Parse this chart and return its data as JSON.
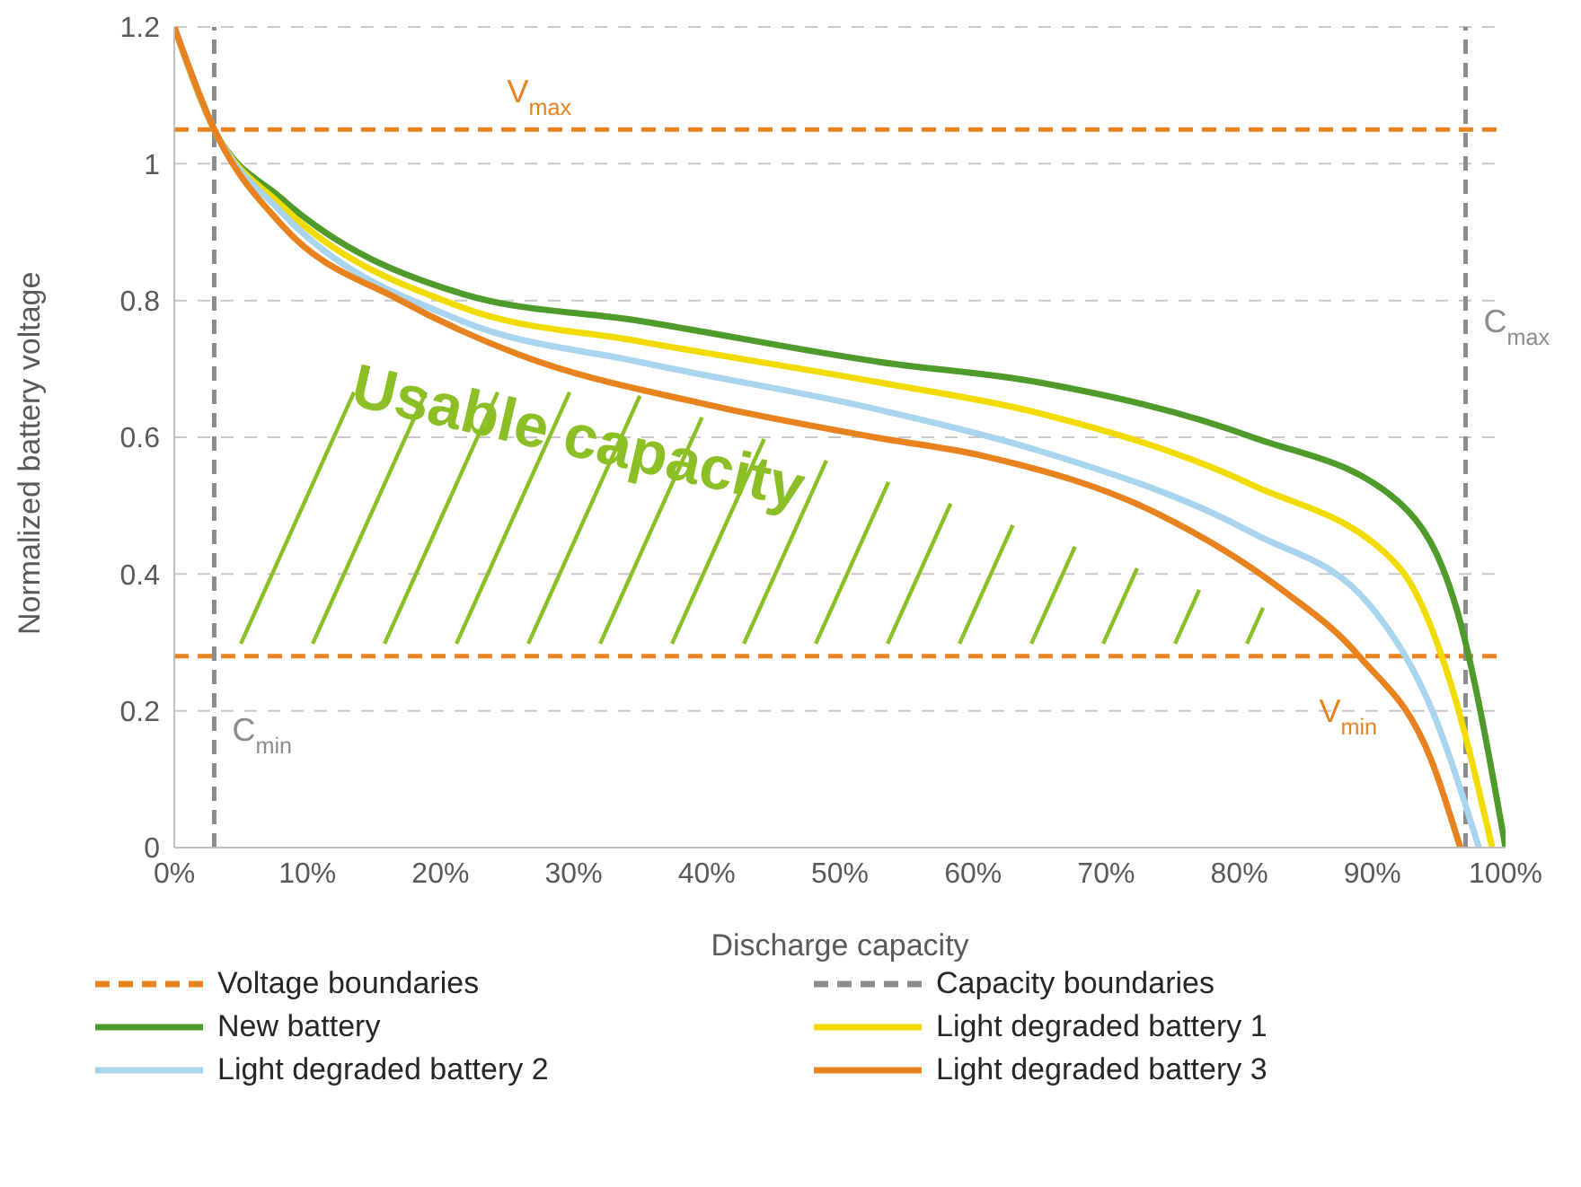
{
  "chart_data": {
    "type": "line",
    "xlabel": "Discharge capacity",
    "ylabel": "Normalized battery voltage",
    "xlim": [
      0,
      100
    ],
    "ylim": [
      0,
      1.2
    ],
    "xticks": [
      {
        "value": 0,
        "label": "0%"
      },
      {
        "value": 10,
        "label": "10%"
      },
      {
        "value": 20,
        "label": "20%"
      },
      {
        "value": 30,
        "label": "30%"
      },
      {
        "value": 40,
        "label": "40%"
      },
      {
        "value": 50,
        "label": "50%"
      },
      {
        "value": 60,
        "label": "60%"
      },
      {
        "value": 70,
        "label": "70%"
      },
      {
        "value": 80,
        "label": "80%"
      },
      {
        "value": 90,
        "label": "90%"
      },
      {
        "value": 100,
        "label": "100%"
      }
    ],
    "yticks": [
      0,
      0.2,
      0.4,
      0.6,
      0.8,
      1,
      1.2
    ],
    "grid": "y",
    "legend": "bottom",
    "marker": "none",
    "line_style": "solid",
    "series": [
      {
        "name": "New battery",
        "color": "#4e9a2a",
        "x": [
          0,
          3,
          8,
          21.6,
          35,
          53,
          65,
          81,
          92,
          96.6,
          100
        ],
        "values": [
          1.2,
          1.05,
          0.95,
          0.81,
          0.77,
          0.71,
          0.68,
          0.6,
          0.505,
          0.33,
          0
        ]
      },
      {
        "name": "Light degraded battery 1",
        "color": "#f2dc00",
        "x": [
          0,
          3,
          8,
          21.6,
          35,
          53,
          65,
          81,
          92,
          95.8,
          99
        ],
        "values": [
          1.2,
          1.05,
          0.94,
          0.79,
          0.74,
          0.68,
          0.635,
          0.53,
          0.41,
          0.245,
          0
        ]
      },
      {
        "name": "Light degraded battery 2",
        "color": "#a9d4ee",
        "x": [
          0,
          3,
          8,
          21.6,
          35,
          53,
          65,
          81,
          90,
          94.5,
          98
        ],
        "values": [
          1.2,
          1.05,
          0.93,
          0.77,
          0.71,
          0.64,
          0.58,
          0.46,
          0.35,
          0.2,
          0
        ]
      },
      {
        "name": "Light degraded battery 3",
        "color": "#e8821e",
        "x": [
          0,
          3,
          8.1,
          17,
          26,
          39.5,
          52.6,
          60.7,
          74,
          83,
          89,
          94.5,
          96.6
        ],
        "values": [
          1.2,
          1.05,
          0.91,
          0.8,
          0.72,
          0.65,
          0.6,
          0.573,
          0.487,
          0.38,
          0.28,
          0.124,
          0
        ]
      }
    ],
    "ref_lines": [
      {
        "axis": "y",
        "value": 1.05,
        "label": "V$_{max}$",
        "color": "#e8821e",
        "line_style": "dashed"
      },
      {
        "axis": "y",
        "value": 0.28,
        "label": "V$_{min}$",
        "color": "#e8821e",
        "line_style": "dashed"
      },
      {
        "axis": "x",
        "value": 3,
        "label": "C$_{min}$",
        "color": "#8c8c8c",
        "line_style": "dashed"
      },
      {
        "axis": "x",
        "value": 97,
        "label": "C$_{max}$",
        "color": "#8c8c8c",
        "line_style": "dashed"
      }
    ],
    "annotations": [
      "Usable capacity",
      "Voltage boundaries",
      "Capacity boundaries"
    ]
  }
}
